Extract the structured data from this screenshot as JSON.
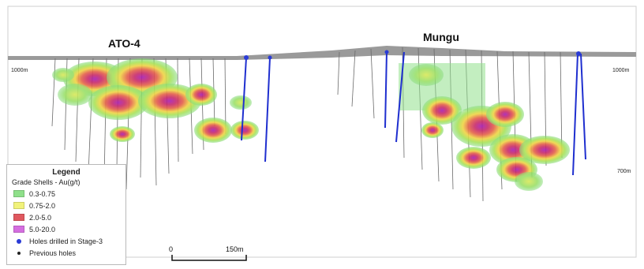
{
  "deposits": {
    "left_name": "ATO-4",
    "right_name": "Mungu"
  },
  "elevations": {
    "left_top": "1000m",
    "right_top": "1000m",
    "right_lower": "700m"
  },
  "legend": {
    "title": "Legend",
    "subtitle": "Grade Shells - Au(g/t)",
    "grades": [
      {
        "label": "0.3-0.75",
        "color": "#8fe08a"
      },
      {
        "label": "0.75-2.0",
        "color": "#f1f27a"
      },
      {
        "label": "2.0-5.0",
        "color": "#e0585f"
      },
      {
        "label": "5.0-20.0",
        "color": "#d56ee0"
      }
    ],
    "holes": [
      {
        "label": "Holes  drilled in Stage-3",
        "color": "#2a3bd6"
      },
      {
        "label": "Previous holes",
        "color": "#222222"
      }
    ]
  },
  "scale": {
    "start": "0",
    "end": "150m"
  },
  "colors": {
    "surface": "#9a9a9a",
    "stage3": "#1f2fcf",
    "previous": "#6a6a6a"
  }
}
